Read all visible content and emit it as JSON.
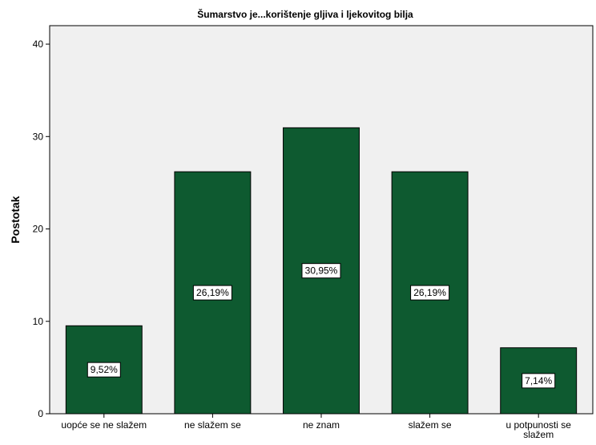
{
  "chart_data": {
    "type": "bar",
    "title": "Šumarstvo je...korištenje gljiva i ljekovitog bilja",
    "ylabel": "Postotak",
    "xlabel": "",
    "ylim": [
      0,
      42
    ],
    "yticks": [
      0,
      10,
      20,
      30,
      40
    ],
    "categories": [
      [
        "uopće se ne slažem"
      ],
      [
        "ne slažem se"
      ],
      [
        "ne znam"
      ],
      [
        "slažem se"
      ],
      [
        "u potpunosti se",
        "slažem"
      ]
    ],
    "values": [
      9.52,
      26.19,
      30.95,
      26.19,
      7.14
    ],
    "data_labels": [
      "9,52%",
      "26,19%",
      "30,95%",
      "26,19%",
      "7,14%"
    ],
    "bar_color": "#0e5a30",
    "plot_background": "#f0f0f0",
    "grid": false,
    "legend": "none"
  }
}
